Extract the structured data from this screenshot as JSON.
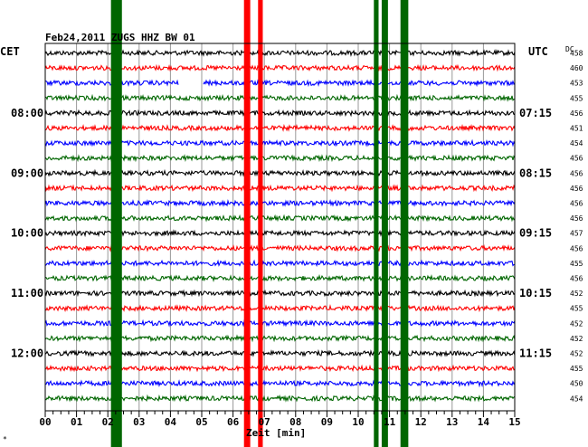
{
  "chart_data": {
    "type": "line",
    "title": "Feb24,2011   ZUGS HHZ BW 01",
    "xlabel": "Zeit [min]",
    "left_label": "CET",
    "right_label": "UTC",
    "dc_label": "DC",
    "corner_mark": "*",
    "xlim": [
      0,
      15
    ],
    "x_ticks": [
      "00",
      "01",
      "02",
      "03",
      "04",
      "05",
      "06",
      "07",
      "08",
      "09",
      "10",
      "11",
      "12",
      "13",
      "14",
      "15"
    ],
    "trace_colors": [
      "#000000",
      "#ff0000",
      "#0000ff",
      "#006600"
    ],
    "cet_labels": [
      {
        "trace": 4,
        "text": "08:00"
      },
      {
        "trace": 8,
        "text": "09:00"
      },
      {
        "trace": 12,
        "text": "10:00"
      },
      {
        "trace": 16,
        "text": "11:00"
      },
      {
        "trace": 20,
        "text": "12:00"
      }
    ],
    "utc_labels": [
      {
        "trace": 4,
        "text": "07:15"
      },
      {
        "trace": 8,
        "text": "08:15"
      },
      {
        "trace": 12,
        "text": "09:15"
      },
      {
        "trace": 16,
        "text": "10:15"
      },
      {
        "trace": 20,
        "text": "11:15"
      }
    ],
    "dc_values": [
      "458",
      "460",
      "453",
      "455",
      "456",
      "451",
      "454",
      "456",
      "456",
      "456",
      "456",
      "456",
      "457",
      "456",
      "455",
      "456",
      "452",
      "455",
      "452",
      "452",
      "452",
      "455",
      "450",
      "454"
    ],
    "event_bands": [
      {
        "color": "#006600",
        "x": [
          2.1,
          2.45
        ]
      },
      {
        "color": "#ff0000",
        "x": [
          6.35,
          6.55
        ]
      },
      {
        "color": "#ff0000",
        "x": [
          6.8,
          6.95
        ]
      },
      {
        "color": "#006600",
        "x": [
          10.5,
          10.65
        ]
      },
      {
        "color": "#006600",
        "x": [
          10.75,
          10.95
        ]
      },
      {
        "color": "#006600",
        "x": [
          11.35,
          11.6
        ]
      }
    ],
    "gap": {
      "trace": 2,
      "x": [
        4.25,
        5.05
      ]
    }
  }
}
